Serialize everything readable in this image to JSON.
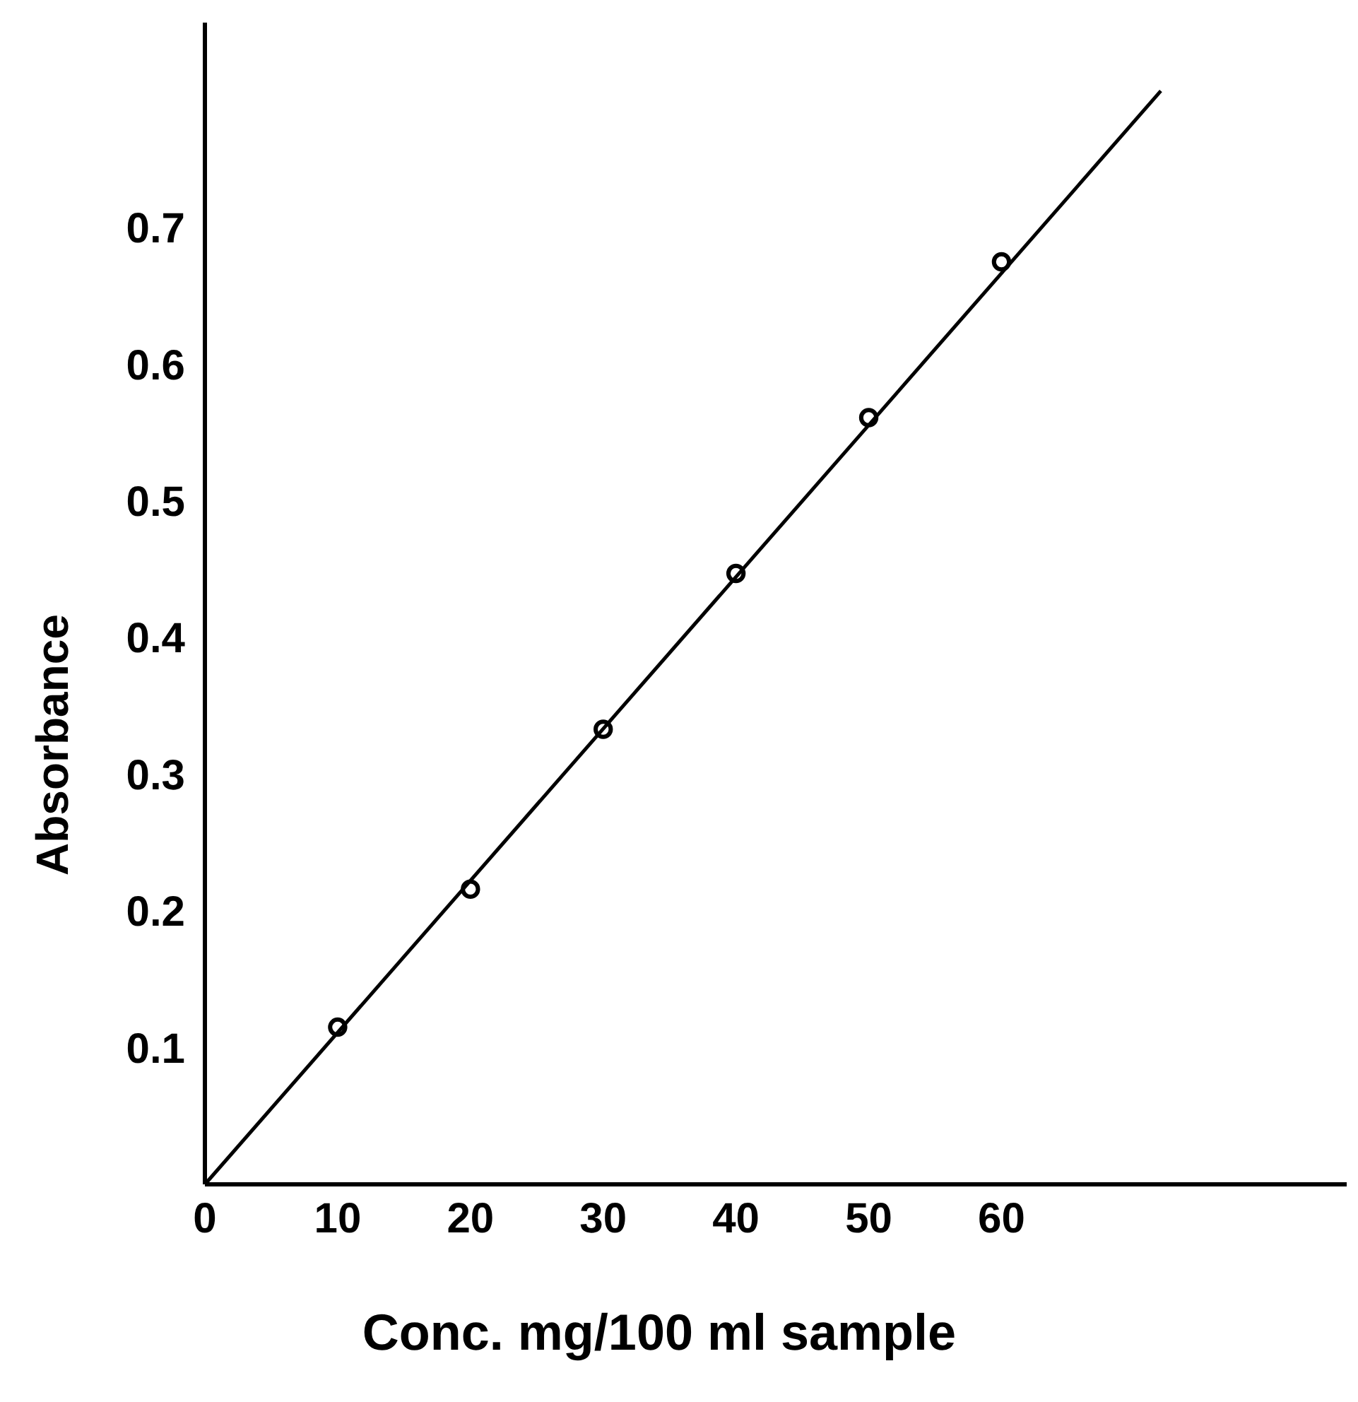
{
  "chart_data": {
    "type": "scatter",
    "xlabel": "Conc. mg/100 ml sample",
    "ylabel": "Absorbance",
    "xlim": [
      0,
      86
    ],
    "ylim": [
      0,
      0.85
    ],
    "xticks": [
      0,
      10,
      20,
      30,
      40,
      50,
      60
    ],
    "yticks": [
      0.1,
      0.2,
      0.3,
      0.4,
      0.5,
      0.6,
      0.7
    ],
    "grid": false,
    "series": [
      {
        "color": "#000000",
        "marker": "circle",
        "x": [
          10,
          20,
          30,
          40,
          50,
          60
        ],
        "values": [
          0.115,
          0.216,
          0.333,
          0.447,
          0.561,
          0.675
        ]
      },
      {
        "type": "line",
        "color": "#000000",
        "x": [
          0,
          72
        ],
        "values": [
          0,
          0.8
        ]
      }
    ]
  }
}
